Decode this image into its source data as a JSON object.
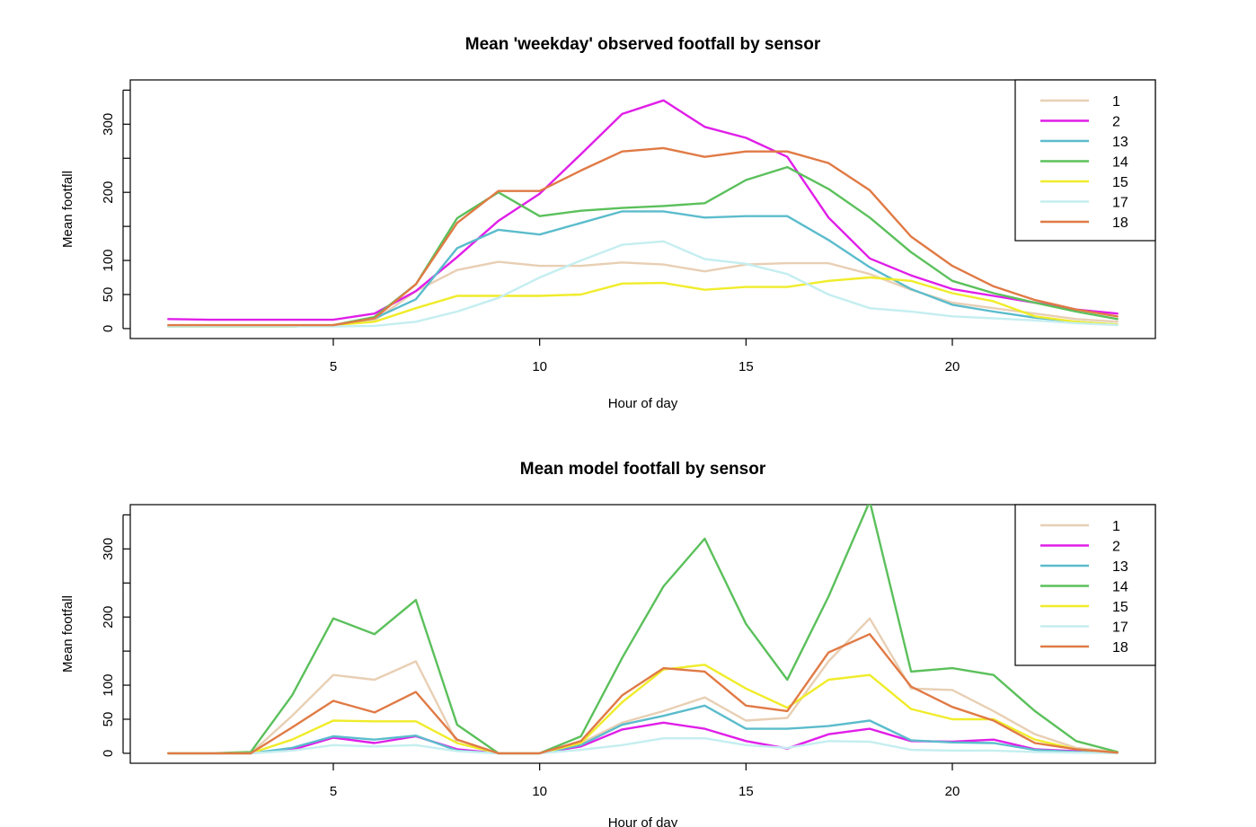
{
  "chart_data": [
    {
      "type": "line",
      "title": "Mean 'weekday' observed footfall by sensor",
      "xlabel": "Hour of day",
      "ylabel": "Mean footfall",
      "xlim": [
        1,
        24
      ],
      "ylim": [
        0,
        365
      ],
      "xticks": [
        5,
        10,
        15,
        20
      ],
      "yticks": [
        0,
        50,
        100,
        200,
        300
      ],
      "legend_position": "top-right",
      "x": [
        1,
        2,
        3,
        4,
        5,
        6,
        7,
        8,
        9,
        10,
        11,
        12,
        13,
        14,
        15,
        16,
        17,
        18,
        19,
        20,
        21,
        22,
        23,
        24
      ],
      "series": [
        {
          "name": "1",
          "color": "#e8cfb4",
          "values": [
            3,
            3,
            3,
            3,
            5,
            12,
            55,
            86,
            98,
            92,
            92,
            97,
            94,
            84,
            94,
            96,
            96,
            80,
            57,
            38,
            30,
            22,
            14,
            10
          ]
        },
        {
          "name": "2",
          "color": "#e01ee8",
          "values": [
            14,
            13,
            13,
            13,
            13,
            22,
            55,
            105,
            158,
            198,
            256,
            315,
            335,
            296,
            280,
            252,
            163,
            103,
            78,
            58,
            48,
            38,
            28,
            22
          ]
        },
        {
          "name": "13",
          "color": "#5bbccc",
          "values": [
            3,
            3,
            3,
            3,
            5,
            15,
            43,
            118,
            145,
            138,
            155,
            172,
            172,
            163,
            165,
            165,
            130,
            90,
            58,
            35,
            25,
            16,
            10,
            6
          ]
        },
        {
          "name": "14",
          "color": "#5bc05b",
          "values": [
            3,
            3,
            3,
            3,
            5,
            17,
            65,
            162,
            200,
            165,
            173,
            177,
            180,
            184,
            218,
            237,
            205,
            163,
            112,
            70,
            52,
            38,
            25,
            14
          ]
        },
        {
          "name": "15",
          "color": "#f0ec2a",
          "values": [
            3,
            3,
            3,
            3,
            5,
            10,
            30,
            48,
            48,
            48,
            50,
            66,
            67,
            57,
            61,
            61,
            70,
            75,
            70,
            52,
            40,
            18,
            10,
            6
          ]
        },
        {
          "name": "17",
          "color": "#c5eef0",
          "values": [
            3,
            3,
            3,
            3,
            3,
            4,
            10,
            25,
            45,
            75,
            100,
            123,
            128,
            102,
            95,
            80,
            50,
            30,
            25,
            18,
            15,
            12,
            8,
            5
          ]
        },
        {
          "name": "18",
          "color": "#e07a45",
          "values": [
            5,
            5,
            5,
            5,
            5,
            15,
            65,
            155,
            202,
            202,
            232,
            260,
            265,
            252,
            260,
            260,
            243,
            203,
            135,
            92,
            62,
            42,
            28,
            18
          ]
        }
      ]
    },
    {
      "type": "line",
      "title": "Mean model footfall by sensor",
      "xlabel": "Hour of day",
      "ylabel": "Mean footfall",
      "xlim": [
        1,
        24
      ],
      "ylim": [
        0,
        365
      ],
      "xticks": [
        5,
        10,
        15,
        20
      ],
      "yticks": [
        0,
        50,
        100,
        200,
        300
      ],
      "legend_position": "top-right",
      "x": [
        1,
        2,
        3,
        4,
        5,
        6,
        7,
        8,
        9,
        10,
        11,
        12,
        13,
        14,
        15,
        16,
        17,
        18,
        19,
        20,
        21,
        22,
        23,
        24
      ],
      "series": [
        {
          "name": "1",
          "color": "#e8cfb4",
          "values": [
            0,
            0,
            0,
            55,
            115,
            108,
            135,
            15,
            0,
            0,
            15,
            45,
            62,
            82,
            48,
            52,
            135,
            198,
            95,
            93,
            62,
            28,
            8,
            2
          ]
        },
        {
          "name": "2",
          "color": "#e01ee8",
          "values": [
            0,
            0,
            0,
            5,
            23,
            15,
            25,
            6,
            0,
            0,
            10,
            35,
            45,
            36,
            18,
            7,
            28,
            36,
            18,
            17,
            20,
            6,
            3,
            1
          ]
        },
        {
          "name": "13",
          "color": "#5bbccc",
          "values": [
            0,
            0,
            0,
            8,
            25,
            20,
            26,
            4,
            0,
            0,
            12,
            42,
            55,
            70,
            36,
            36,
            40,
            48,
            19,
            16,
            15,
            5,
            2,
            1
          ]
        },
        {
          "name": "14",
          "color": "#5bc05b",
          "values": [
            0,
            0,
            2,
            85,
            198,
            175,
            225,
            42,
            0,
            0,
            25,
            140,
            245,
            315,
            190,
            108,
            230,
            370,
            120,
            125,
            115,
            62,
            18,
            2
          ]
        },
        {
          "name": "15",
          "color": "#f0ec2a",
          "values": [
            0,
            0,
            0,
            20,
            48,
            47,
            47,
            15,
            0,
            0,
            15,
            75,
            123,
            130,
            95,
            67,
            108,
            115,
            65,
            50,
            50,
            20,
            6,
            1
          ]
        },
        {
          "name": "17",
          "color": "#c5eef0",
          "values": [
            0,
            0,
            0,
            4,
            12,
            10,
            12,
            3,
            0,
            0,
            5,
            12,
            22,
            22,
            12,
            8,
            18,
            17,
            5,
            4,
            4,
            2,
            1,
            0
          ]
        },
        {
          "name": "18",
          "color": "#e07a45",
          "values": [
            0,
            0,
            0,
            38,
            77,
            60,
            90,
            20,
            0,
            0,
            18,
            85,
            125,
            120,
            70,
            62,
            148,
            175,
            98,
            68,
            48,
            15,
            6,
            1
          ]
        }
      ]
    }
  ]
}
